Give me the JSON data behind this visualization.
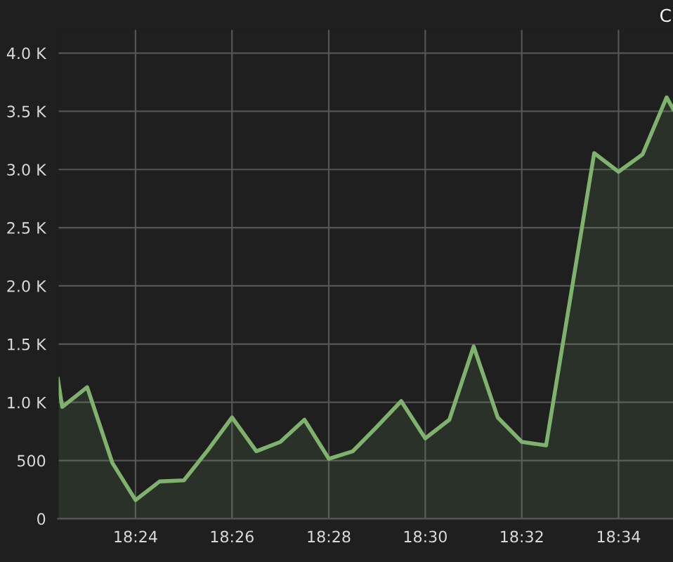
{
  "chart_data": {
    "type": "area",
    "annotations": [
      "C"
    ],
    "x": [
      18.3732,
      18.3747,
      18.3833,
      18.392,
      18.4,
      18.4083,
      18.4167,
      18.425,
      18.4333,
      18.4417,
      18.45,
      18.4583,
      18.4667,
      18.475,
      18.4833,
      18.4917,
      18.5,
      18.5083,
      18.5167,
      18.525,
      18.5333,
      18.5417,
      18.5583,
      18.5667,
      18.575,
      18.5833,
      18.5855
    ],
    "series": [
      {
        "color": "#7eb26d",
        "values": [
          1200,
          960,
          1130,
          480,
          160,
          320,
          330,
          590,
          870,
          580,
          660,
          850,
          515,
          580,
          790,
          1010,
          690,
          850,
          1480,
          870,
          660,
          630,
          3140,
          2980,
          3130,
          3620,
          3520
        ]
      }
    ],
    "xlim": [
      18.3732,
      18.5855
    ],
    "xticks": [
      {
        "value": 18.4,
        "label": "18:24"
      },
      {
        "value": 18.4333,
        "label": "18:26"
      },
      {
        "value": 18.4667,
        "label": "18:28"
      },
      {
        "value": 18.5,
        "label": "18:30"
      },
      {
        "value": 18.5333,
        "label": "18:32"
      },
      {
        "value": 18.5667,
        "label": "18:34"
      }
    ],
    "ylim": [
      0,
      4200
    ],
    "yticks": [
      0,
      500,
      {
        "value": 1000,
        "label": "1.0 K"
      },
      {
        "value": 1500,
        "label": "1.5 K"
      },
      {
        "value": 2000,
        "label": "2.0 K"
      },
      {
        "value": 2500,
        "label": "2.5 K"
      },
      {
        "value": 3000,
        "label": "3.0 K"
      },
      {
        "value": 3500,
        "label": "3.5 K"
      },
      {
        "value": 4000,
        "label": "4.0 K"
      }
    ],
    "grid": true,
    "legend": false
  }
}
